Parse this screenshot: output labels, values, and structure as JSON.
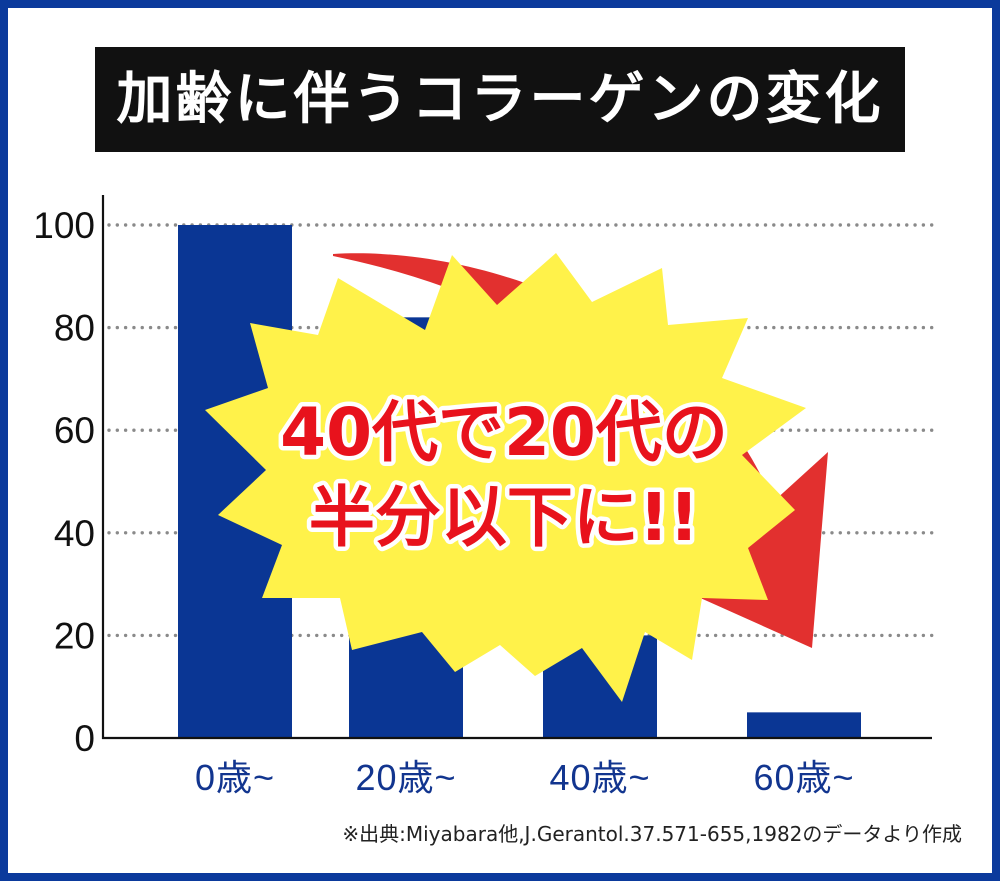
{
  "chart_data": {
    "type": "bar",
    "title": "加齢に伴うコラーゲンの変化",
    "categories": [
      "0歳~",
      "20歳~",
      "40歳~",
      "60歳~"
    ],
    "values": [
      100,
      82,
      20,
      5
    ],
    "ylim": [
      0,
      100
    ],
    "yticks": [
      0,
      20,
      40,
      60,
      80,
      100
    ],
    "grid": true
  },
  "callout": {
    "line1": "40代で20代の",
    "line2": "半分以下に!!"
  },
  "source": "※出典:Miyabara他,J.Gerantol.37.571-655,1982のデータより作成",
  "colors": {
    "frame": "#0b3a9c",
    "bar": "#0a3694",
    "title_bg": "#111111",
    "x_label": "#12358f",
    "arrow": "#e2302f",
    "burst": "#fff24a",
    "callout_text": "#e8121c"
  }
}
